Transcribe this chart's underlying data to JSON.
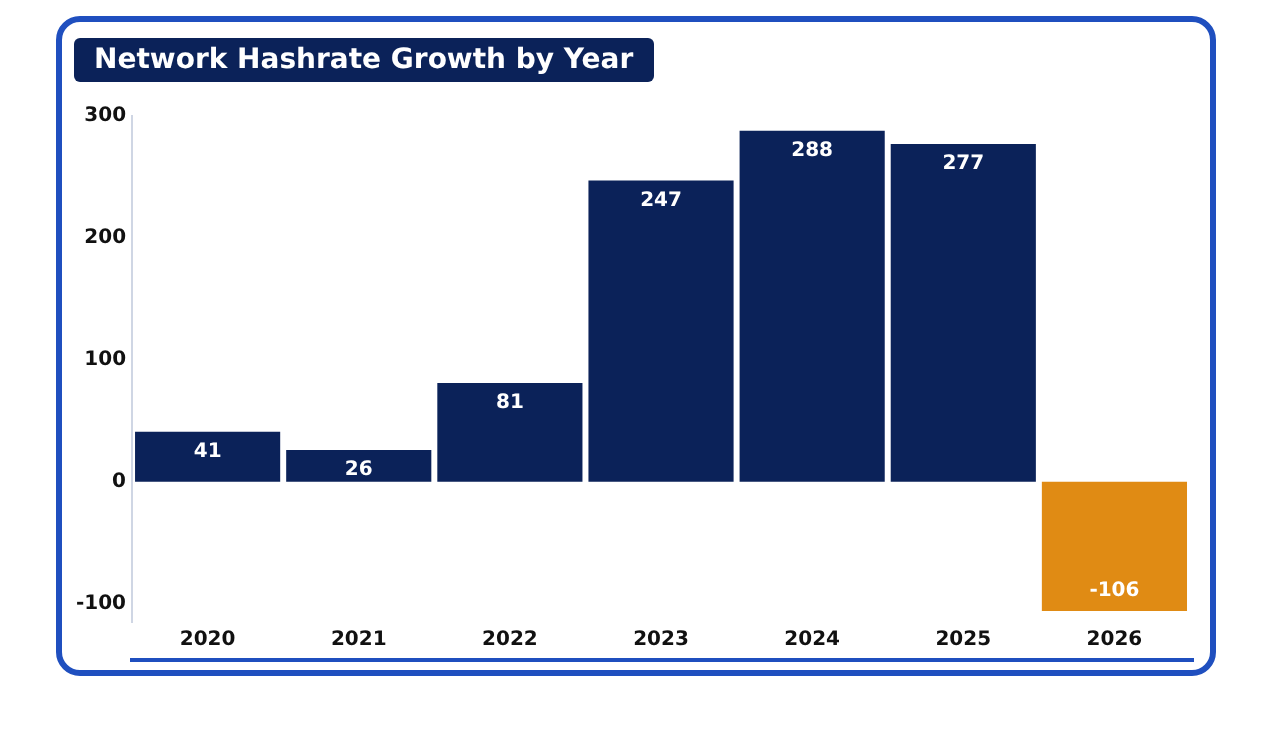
{
  "chart_data": {
    "type": "bar",
    "title": "Network Hashrate Growth by Year",
    "categories": [
      "2020",
      "2021",
      "2022",
      "2023",
      "2024",
      "2025",
      "2026"
    ],
    "values": [
      41,
      26,
      81,
      247,
      288,
      277,
      -106
    ],
    "colors": [
      "#0b2259",
      "#0b2259",
      "#0b2259",
      "#0b2259",
      "#0b2259",
      "#0b2259",
      "#e08b14"
    ],
    "ylim": [
      -115,
      300
    ],
    "yticks": [
      -100,
      0,
      100,
      200,
      300
    ],
    "grid": false,
    "legend": false,
    "data_labels": true
  }
}
